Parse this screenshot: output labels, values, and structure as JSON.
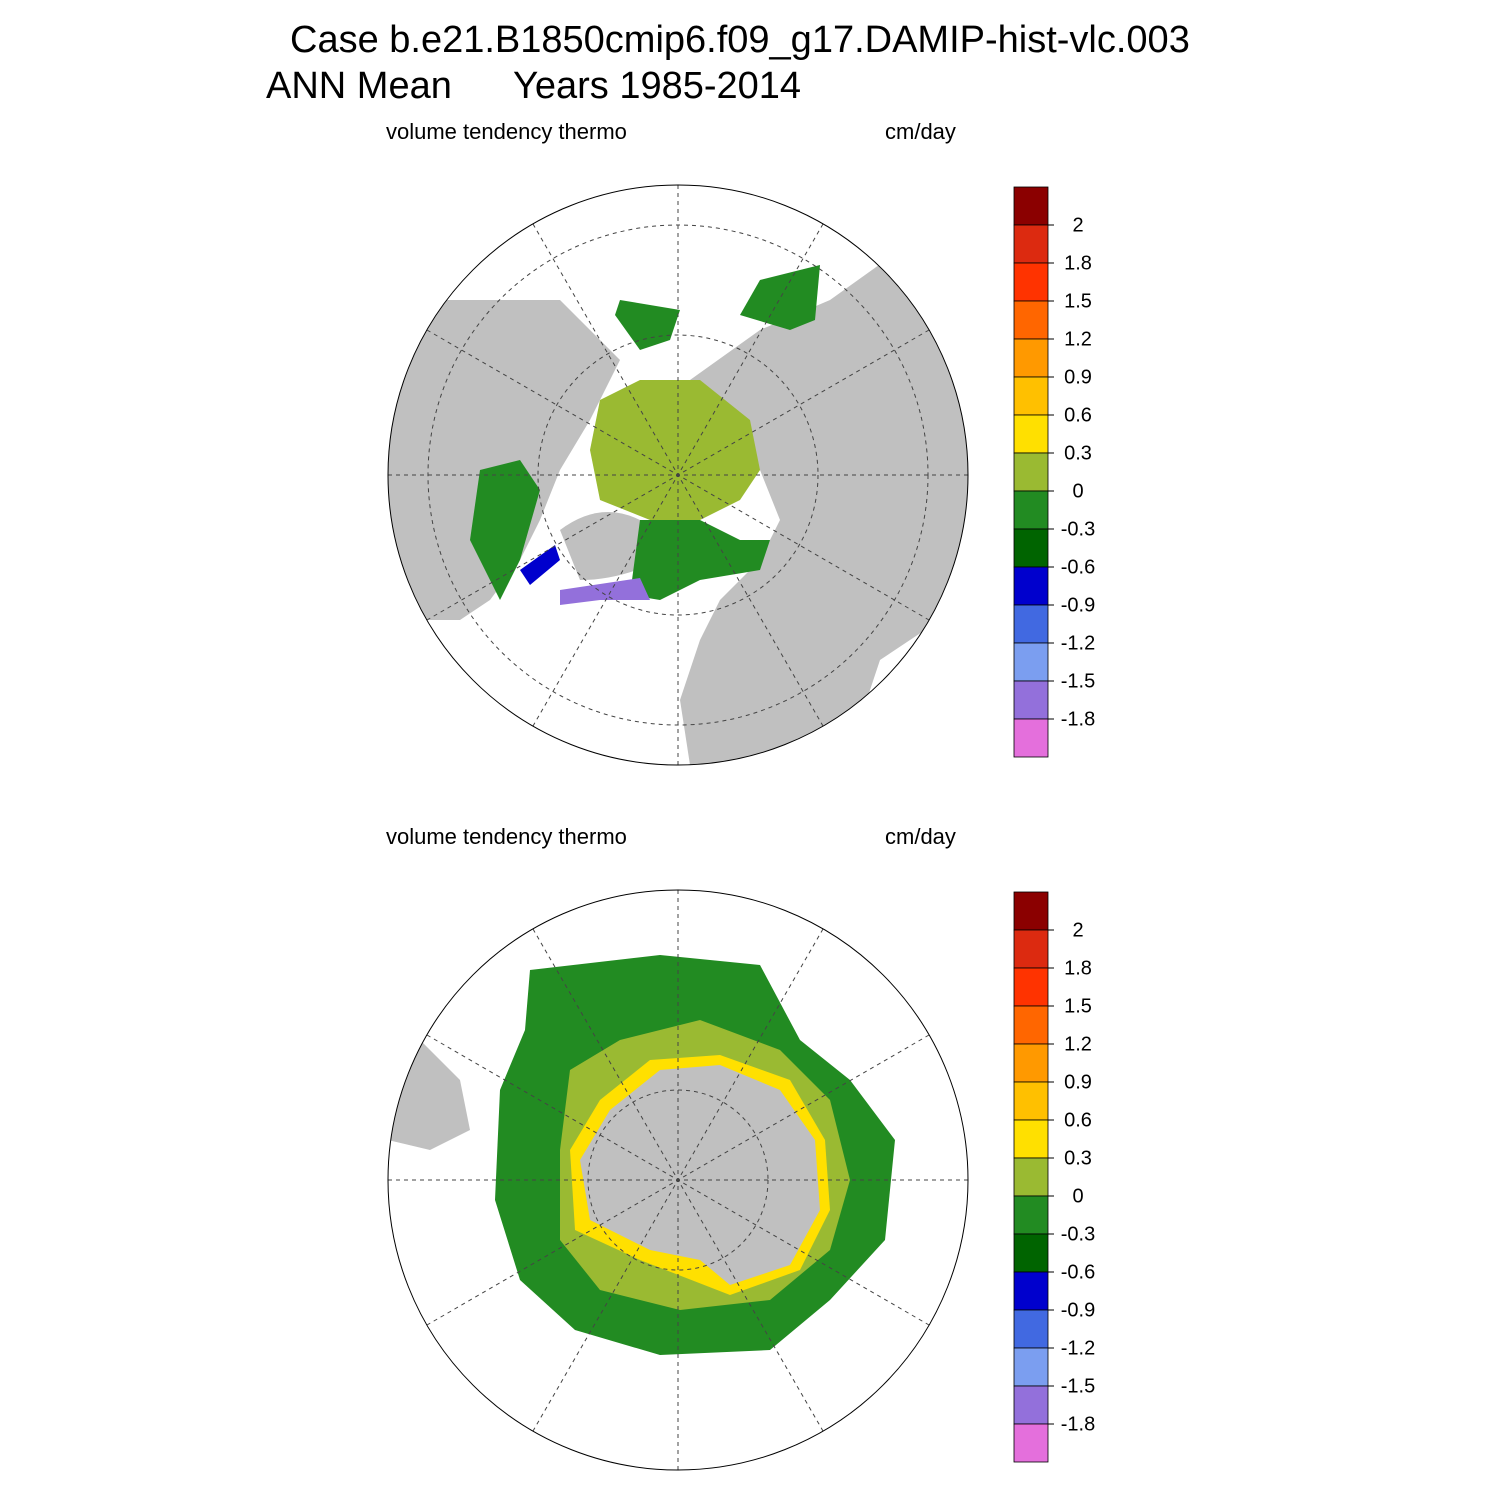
{
  "header": {
    "title": "Case b.e21.B1850cmip6.f09_g17.DAMIP-hist-vlc.003",
    "period_label": "ANN Mean",
    "years_label": "Years 1985-2014"
  },
  "panels": [
    {
      "left_label": "volume tendency thermo",
      "right_label": "cm/day",
      "colorbar": {
        "levels": [
          2,
          1.8,
          1.5,
          1.2,
          0.9,
          0.6,
          0.3,
          0,
          -0.3,
          -0.6,
          -0.9,
          -1.2,
          -1.5,
          -1.8
        ],
        "colors": [
          "#8b0000",
          "#dc2a10",
          "#ff3300",
          "#ff6600",
          "#ff9900",
          "#ffc000",
          "#ffe000",
          "#9aba32",
          "#228b22",
          "#006400",
          "#0000cd",
          "#4169e1",
          "#7b9ef0",
          "#9370db",
          "#e46fdc"
        ]
      }
    },
    {
      "left_label": "volume tendency thermo",
      "right_label": "cm/day",
      "colorbar": {
        "levels": [
          2,
          1.8,
          1.5,
          1.2,
          0.9,
          0.6,
          0.3,
          0,
          -0.3,
          -0.6,
          -0.9,
          -1.2,
          -1.5,
          -1.8
        ],
        "colors": [
          "#8b0000",
          "#dc2a10",
          "#ff3300",
          "#ff6600",
          "#ff9900",
          "#ffc000",
          "#ffe000",
          "#9aba32",
          "#228b22",
          "#006400",
          "#0000cd",
          "#4169e1",
          "#7b9ef0",
          "#9370db",
          "#e46fdc"
        ]
      }
    }
  ]
}
